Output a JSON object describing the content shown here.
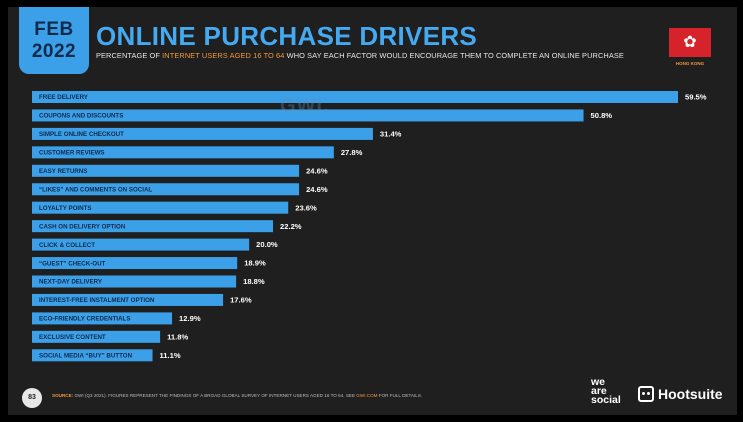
{
  "header": {
    "month": "FEB",
    "year": "2022",
    "title": "ONLINE PURCHASE DRIVERS",
    "subtitle_pre": "PERCENTAGE OF ",
    "subtitle_highlight": "INTERNET USERS AGED 16 TO 64",
    "subtitle_post": " WHO SAY EACH FACTOR WOULD ENCOURAGE THEM TO COMPLETE AN ONLINE PURCHASE"
  },
  "flag": {
    "caption": "HONG KONG"
  },
  "watermark": "GWI.",
  "chart_data": {
    "type": "bar",
    "orientation": "horizontal",
    "categories": [
      "FREE DELIVERY",
      "COUPONS AND DISCOUNTS",
      "SIMPLE ONLINE CHECKOUT",
      "CUSTOMER REVIEWS",
      "EASY RETURNS",
      "“LIKES” AND COMMENTS ON SOCIAL",
      "LOYALTY POINTS",
      "CASH ON DELIVERY OPTION",
      "CLICK & COLLECT",
      "“GUEST” CHECK-OUT",
      "NEXT-DAY DELIVERY",
      "INTEREST-FREE INSTALMENT OPTION",
      "ECO-FRIENDLY CREDENTIALS",
      "EXCLUSIVE CONTENT",
      "SOCIAL MEDIA “BUY” BUTTON"
    ],
    "values": [
      59.5,
      50.8,
      31.4,
      27.8,
      24.6,
      24.6,
      23.6,
      22.2,
      20.0,
      18.9,
      18.8,
      17.6,
      12.9,
      11.8,
      11.1
    ],
    "value_labels": [
      "59.5%",
      "50.8%",
      "31.4%",
      "27.8%",
      "24.6%",
      "24.6%",
      "23.6%",
      "22.2%",
      "20.0%",
      "18.9%",
      "18.8%",
      "17.6%",
      "12.9%",
      "11.8%",
      "11.1%"
    ],
    "xlim": [
      0,
      59.5
    ],
    "bar_color": "#3ca0e8",
    "label_color": "#0f2a4a"
  },
  "footer": {
    "page_number": "83",
    "source_label": "SOURCE:",
    "source_text": " GWI (Q3 2021). FIGURES REPRESENT THE FINDINGS OF A BROAD GLOBAL SURVEY OF INTERNET USERS AGED 16 TO 64. SEE ",
    "source_link": "GWI.COM",
    "source_tail": " FOR FULL DETAILS.",
    "brand1_line1": "we",
    "brand1_line2": "are",
    "brand1_line3": "social",
    "brand2": "Hootsuite"
  }
}
